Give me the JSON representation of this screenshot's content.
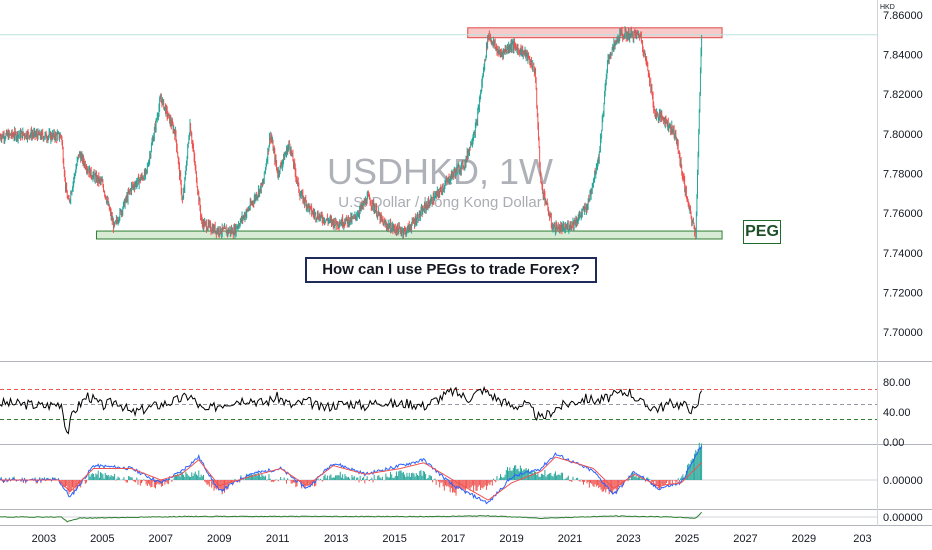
{
  "symbol": {
    "ticker": "USDHKD, 1W",
    "name": "U.S. Dollar / Hong Kong Dollar",
    "currency": "HKD"
  },
  "annotations": {
    "peg_label": "PEG",
    "question": "How can I use PEGs to trade Forex?"
  },
  "colors": {
    "bull": "#26a69a",
    "bear": "#ef5350",
    "upper_zone_fill": "#f8c9c9",
    "upper_zone_stroke": "#e04848",
    "lower_zone_fill": "#d8ecd5",
    "lower_zone_stroke": "#2e7d32",
    "rsi_line": "#000000",
    "macd_line": "#2962ff",
    "signal_line": "#ef5350",
    "third_line": "#2e7d32"
  },
  "chart_data": [
    {
      "type": "line",
      "title": "USDHKD, 1W",
      "subtitle": "U.S. Dollar / Hong Kong Dollar",
      "x_ticks": [
        "2003",
        "2005",
        "2007",
        "2009",
        "2011",
        "2013",
        "2015",
        "2017",
        "2019",
        "2021",
        "2023",
        "2025",
        "2027",
        "2029",
        "203"
      ],
      "y_ticks": [
        "7.86000",
        "7.84000",
        "7.82000",
        "7.80000",
        "7.78000",
        "7.76000",
        "7.74000",
        "7.72000",
        "7.70000"
      ],
      "ylim": [
        7.69,
        7.865
      ],
      "xlim": [
        2001.5,
        2031.5
      ],
      "grid": false,
      "zones": [
        {
          "name": "upper",
          "x": [
            2017.5,
            2026.2
          ],
          "y": [
            7.8485,
            7.8535
          ]
        },
        {
          "name": "lower",
          "x": [
            2004.8,
            2026.2
          ],
          "y": [
            7.747,
            7.751
          ]
        }
      ],
      "x": [
        2001.5,
        2002.5,
        2002.9,
        2003.6,
        2003.75,
        2003.85,
        2004.2,
        2004.6,
        2005.0,
        2005.4,
        2005.7,
        2006.0,
        2006.5,
        2007.0,
        2007.5,
        2007.75,
        2008.0,
        2008.4,
        2008.8,
        2009.1,
        2009.5,
        2010.0,
        2010.5,
        2010.75,
        2011.0,
        2011.4,
        2011.75,
        2012.2,
        2012.6,
        2013.0,
        2013.6,
        2014.1,
        2014.6,
        2015.0,
        2015.4,
        2015.9,
        2016.1,
        2016.5,
        2017.0,
        2017.4,
        2017.8,
        2018.2,
        2018.6,
        2019.0,
        2019.5,
        2019.8,
        2020.0,
        2020.4,
        2020.8,
        2021.2,
        2021.6,
        2022.0,
        2022.3,
        2022.7,
        2023.0,
        2023.4,
        2023.7,
        2023.9,
        2024.2,
        2024.6,
        2024.9,
        2025.1,
        2025.3,
        2025.5
      ],
      "y": [
        7.799,
        7.8,
        7.799,
        7.799,
        7.772,
        7.765,
        7.79,
        7.78,
        7.775,
        7.753,
        7.763,
        7.773,
        7.78,
        7.818,
        7.8,
        7.765,
        7.805,
        7.755,
        7.752,
        7.751,
        7.751,
        7.762,
        7.775,
        7.8,
        7.78,
        7.795,
        7.77,
        7.76,
        7.757,
        7.755,
        7.757,
        7.768,
        7.755,
        7.752,
        7.751,
        7.76,
        7.764,
        7.77,
        7.78,
        7.785,
        7.805,
        7.85,
        7.84,
        7.845,
        7.84,
        7.832,
        7.775,
        7.753,
        7.752,
        7.756,
        7.764,
        7.79,
        7.838,
        7.85,
        7.85,
        7.85,
        7.83,
        7.81,
        7.808,
        7.8,
        7.775,
        7.76,
        7.75,
        7.85
      ]
    },
    {
      "type": "line",
      "y_ticks": [
        "80.00",
        "40.00",
        "0.00"
      ],
      "ylim": [
        0,
        100
      ],
      "levels": [
        70,
        50,
        30
      ],
      "x": [
        2001.5,
        2002.5,
        2003.0,
        2003.6,
        2003.8,
        2004.0,
        2004.5,
        2005.0,
        2005.5,
        2006.0,
        2006.5,
        2007.0,
        2007.5,
        2008.0,
        2008.5,
        2009.0,
        2009.5,
        2010.0,
        2010.5,
        2011.0,
        2011.5,
        2012.0,
        2012.5,
        2013.0,
        2013.5,
        2014.0,
        2014.5,
        2015.0,
        2015.5,
        2016.0,
        2016.5,
        2017.0,
        2017.5,
        2018.0,
        2018.5,
        2019.0,
        2019.5,
        2020.0,
        2020.5,
        2021.0,
        2021.5,
        2022.0,
        2022.5,
        2023.0,
        2023.5,
        2024.0,
        2024.5,
        2025.0,
        2025.3,
        2025.5
      ],
      "y": [
        52,
        50,
        48,
        52,
        10,
        40,
        62,
        48,
        55,
        38,
        45,
        50,
        55,
        62,
        40,
        50,
        55,
        58,
        52,
        60,
        48,
        55,
        45,
        50,
        52,
        48,
        55,
        50,
        52,
        48,
        58,
        68,
        58,
        70,
        58,
        48,
        50,
        30,
        45,
        52,
        58,
        55,
        62,
        68,
        50,
        45,
        52,
        48,
        40,
        70
      ]
    },
    {
      "type": "line",
      "y_ticks": [
        "0.00000"
      ],
      "series": [
        {
          "values": [
            0,
            0,
            0,
            -0.006,
            0.005,
            0.004,
            -0.001,
            0.003,
            0.008,
            -0.004,
            0.002,
            0.004,
            -0.003,
            0.006,
            0.002,
            0.005,
            0.007,
            -0.002,
            -0.008,
            0.001,
            0.004,
            0.009,
            0.003,
            -0.005,
            0.003,
            -0.003,
            -0.001,
            0.012
          ]
        },
        {
          "values": [
            0,
            0,
            0,
            -0.004,
            0.004,
            0.004,
            0.0,
            0.002,
            0.007,
            -0.002,
            0.001,
            0.004,
            -0.002,
            0.005,
            0.002,
            0.004,
            0.006,
            0.0,
            -0.007,
            -0.001,
            0.003,
            0.008,
            0.004,
            -0.003,
            0.002,
            -0.002,
            -0.001,
            0.006
          ]
        }
      ],
      "x": [
        2001.5,
        2002.5,
        2003.5,
        2003.9,
        2004.7,
        2006.0,
        2007.0,
        2007.7,
        2008.3,
        2009.0,
        2010.0,
        2011.1,
        2012.0,
        2012.9,
        2014.0,
        2015.2,
        2016.0,
        2017.0,
        2018.2,
        2019.0,
        2020.0,
        2020.5,
        2021.8,
        2022.5,
        2023.2,
        2024.0,
        2024.8,
        2025.5
      ]
    },
    {
      "type": "line",
      "y_ticks": [
        "0.00000"
      ],
      "x": [
        2001.5,
        2003.6,
        2003.8,
        2004.2,
        2008.0,
        2012.0,
        2016.0,
        2018.2,
        2020.0,
        2022.5,
        2024.5,
        2025.3,
        2025.5
      ],
      "y": [
        0,
        0,
        -0.004,
        -0.001,
        0.0005,
        0.0005,
        0.0003,
        0.001,
        -0.001,
        0.0008,
        0.0,
        -0.001,
        0.004
      ]
    }
  ]
}
